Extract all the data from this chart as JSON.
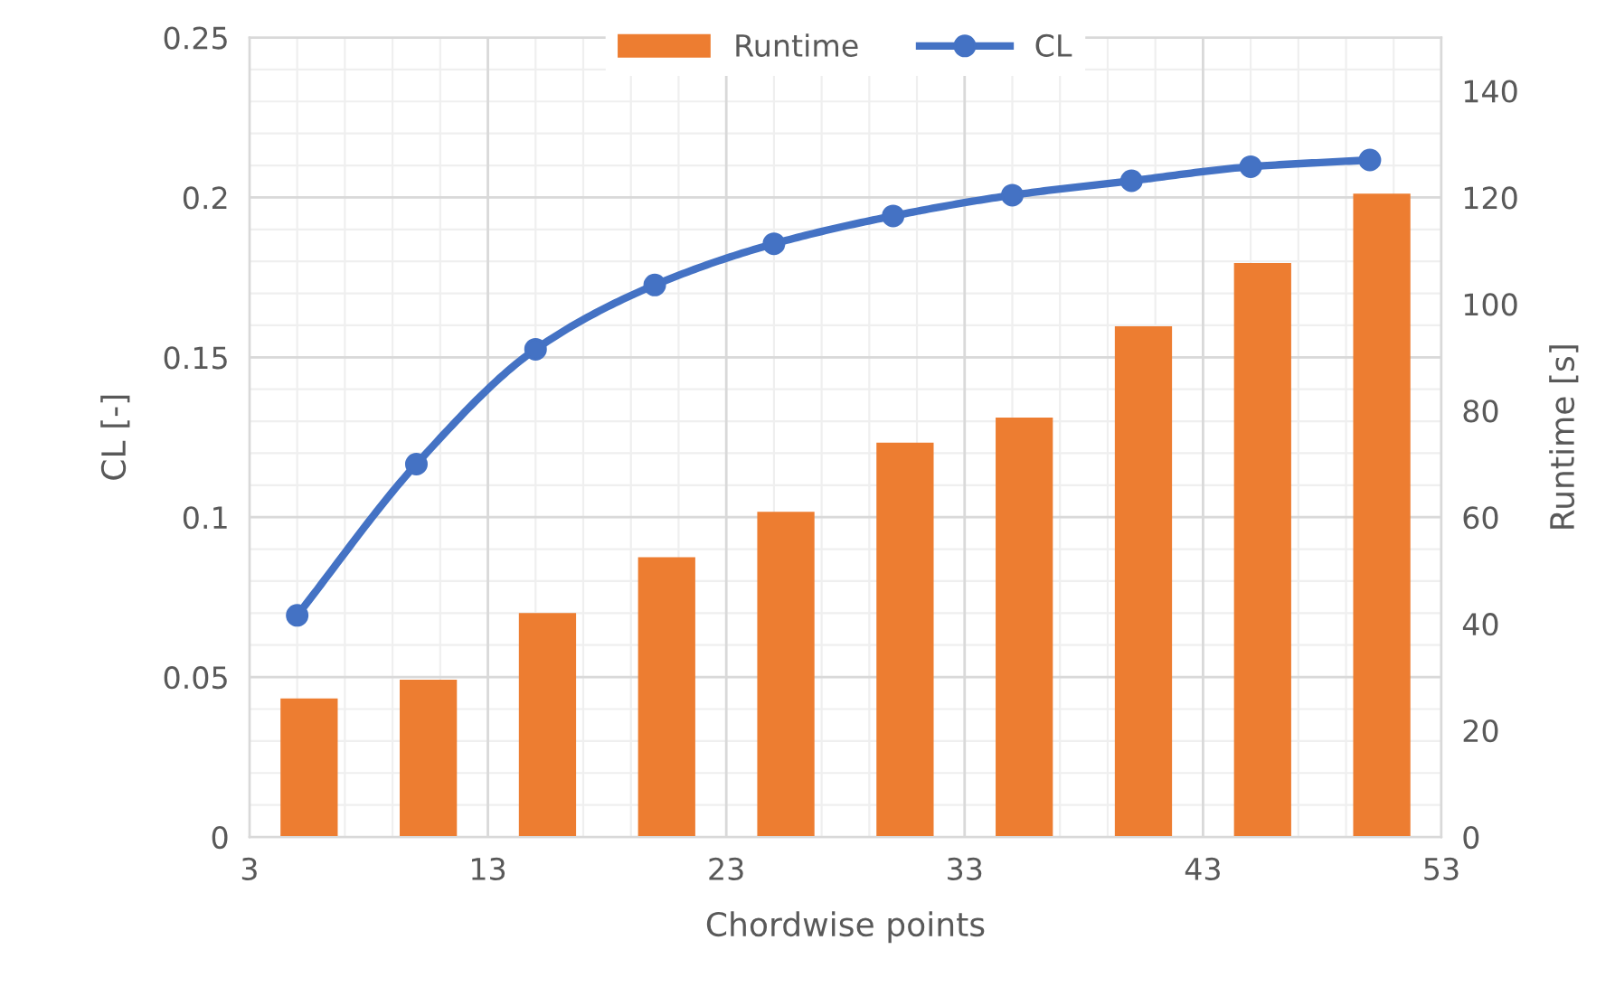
{
  "chart_data": {
    "type": "line",
    "xlabel": "Chordwise points",
    "ylabel": "CL [-]",
    "y2label": "Runtime [s]",
    "xlim": [
      3,
      53
    ],
    "xticks": [
      3,
      13,
      23,
      33,
      43,
      53
    ],
    "ylim": [
      0,
      0.25
    ],
    "yticks": [
      0,
      0.05,
      0.1,
      0.15,
      0.2,
      0.25
    ],
    "y2lim": [
      0,
      150
    ],
    "y2ticks": [
      0,
      20,
      40,
      60,
      80,
      100,
      120,
      140
    ],
    "grid": true,
    "legend": "top",
    "marker": "circle",
    "line_style": "solid",
    "series": [
      {
        "name": "Runtime",
        "type": "bar",
        "axis": "y2",
        "color": "#ed7d31",
        "x": [
          5.5,
          10.5,
          15.5,
          20.5,
          25.5,
          30.5,
          35.5,
          40.5,
          45.5,
          50.5
        ],
        "values": [
          26,
          29.5,
          42,
          52.5,
          61,
          74,
          78.7,
          95.8,
          107.7,
          120.7
        ]
      },
      {
        "name": "CL",
        "color": "#4472c4",
        "x": [
          5,
          10,
          15,
          20,
          25,
          30,
          35,
          40,
          45,
          50
        ],
        "values": [
          0.0693,
          0.1166,
          0.1525,
          0.1726,
          0.1855,
          0.1942,
          0.2007,
          0.2052,
          0.2096,
          0.2117
        ]
      }
    ]
  }
}
